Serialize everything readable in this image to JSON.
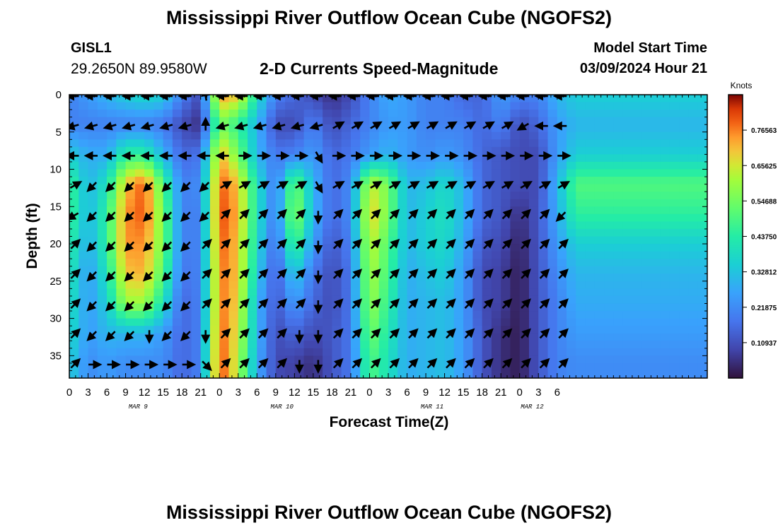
{
  "header": {
    "title": "Mississippi River Outflow Ocean Cube (NGOFS2)",
    "station_name": "GISL1",
    "station_coords": "29.2650N  89.9580W",
    "plot_title": "2-D Currents Speed-Magnitude",
    "model_start_label": "Model Start Time",
    "model_start_value": "03/09/2024 Hour 21"
  },
  "footer": {
    "title": "Mississippi River Outflow Ocean Cube (NGOFS2)"
  },
  "chart_data": {
    "type": "heatmap",
    "title": "2-D Currents Speed-Magnitude",
    "xlabel": "Forecast Time(Z)",
    "ylabel": "Depth (ft)",
    "x_unit": "hours since model start (03/09/2024 Hour 21)",
    "xlim": [
      -21,
      81
    ],
    "ylim": [
      38,
      0
    ],
    "y_inverted": true,
    "x_tick_labels": [
      "0",
      "3",
      "6",
      "9",
      "12",
      "15",
      "18",
      "21",
      "0",
      "3",
      "6",
      "9",
      "12",
      "15",
      "18",
      "21",
      "0",
      "3",
      "6",
      "9",
      "12",
      "15",
      "18",
      "21",
      "0",
      "3",
      "6"
    ],
    "x_tick_hours": [
      -21,
      -18,
      -15,
      -12,
      -9,
      -6,
      -3,
      0,
      3,
      6,
      9,
      12,
      15,
      18,
      21,
      24,
      27,
      30,
      33,
      36,
      39,
      42,
      45,
      48,
      51,
      54,
      57
    ],
    "date_labels": [
      {
        "label": "MAR 9",
        "hour": -10
      },
      {
        "label": "MAR 10",
        "hour": 13
      },
      {
        "label": "MAR 11",
        "hour": 37
      },
      {
        "label": "MAR 12",
        "hour": 53
      }
    ],
    "y_ticks": [
      0,
      5,
      10,
      15,
      20,
      25,
      30,
      35
    ],
    "colorbar": {
      "title": "Knots",
      "min": 0,
      "max": 0.875,
      "tick_labels": [
        "0.76563",
        "0.65625",
        "0.54688",
        "0.43750",
        "0.32812",
        "0.21875",
        "0.10937"
      ],
      "tick_values": [
        0.76563,
        0.65625,
        0.54688,
        0.4375,
        0.32812,
        0.21875,
        0.10937
      ]
    },
    "speed_grid": {
      "depths_ft": [
        0,
        4,
        8,
        12,
        16,
        20,
        24,
        28,
        32,
        36
      ],
      "times_hr": [
        -21,
        -18,
        -15,
        -12,
        -9,
        -6,
        -3,
        0,
        3,
        6,
        9,
        12,
        15,
        18,
        21,
        24,
        27,
        30,
        33,
        36,
        39,
        42,
        45,
        48,
        51,
        54,
        57,
        60
      ],
      "values": [
        [
          0.2,
          0.25,
          0.3,
          0.35,
          0.38,
          0.35,
          0.2,
          0.1,
          0.75,
          0.7,
          0.4,
          0.2,
          0.15,
          0.1,
          0.05,
          0.1,
          0.2,
          0.28,
          0.25,
          0.2,
          0.2,
          0.15,
          0.15,
          0.25,
          0.2,
          0.2,
          0.3,
          0.35
        ],
        [
          0.2,
          0.2,
          0.2,
          0.2,
          0.2,
          0.18,
          0.1,
          0.05,
          0.55,
          0.45,
          0.3,
          0.1,
          0.1,
          0.2,
          0.1,
          0.15,
          0.2,
          0.25,
          0.25,
          0.2,
          0.2,
          0.2,
          0.15,
          0.2,
          0.1,
          0.15,
          0.25,
          0.3
        ],
        [
          0.35,
          0.28,
          0.28,
          0.45,
          0.45,
          0.3,
          0.15,
          0.18,
          0.72,
          0.55,
          0.3,
          0.18,
          0.2,
          0.25,
          0.15,
          0.18,
          0.25,
          0.3,
          0.25,
          0.22,
          0.25,
          0.22,
          0.15,
          0.12,
          0.1,
          0.1,
          0.25,
          0.35
        ],
        [
          0.48,
          0.3,
          0.4,
          0.7,
          0.8,
          0.5,
          0.2,
          0.22,
          0.8,
          0.7,
          0.4,
          0.18,
          0.55,
          0.3,
          0.15,
          0.22,
          0.65,
          0.55,
          0.3,
          0.32,
          0.38,
          0.3,
          0.15,
          0.12,
          0.1,
          0.1,
          0.3,
          0.5
        ],
        [
          0.48,
          0.3,
          0.45,
          0.75,
          0.8,
          0.55,
          0.2,
          0.2,
          0.82,
          0.72,
          0.4,
          0.18,
          0.6,
          0.3,
          0.15,
          0.22,
          0.7,
          0.55,
          0.3,
          0.35,
          0.4,
          0.3,
          0.15,
          0.12,
          0.05,
          0.12,
          0.28,
          0.45
        ],
        [
          0.45,
          0.28,
          0.45,
          0.75,
          0.75,
          0.55,
          0.2,
          0.2,
          0.8,
          0.7,
          0.38,
          0.15,
          0.5,
          0.25,
          0.12,
          0.2,
          0.65,
          0.5,
          0.3,
          0.35,
          0.38,
          0.28,
          0.12,
          0.1,
          0.03,
          0.12,
          0.25,
          0.35
        ],
        [
          0.42,
          0.25,
          0.4,
          0.7,
          0.72,
          0.5,
          0.18,
          0.2,
          0.78,
          0.7,
          0.35,
          0.12,
          0.35,
          0.18,
          0.1,
          0.18,
          0.62,
          0.48,
          0.28,
          0.32,
          0.35,
          0.25,
          0.1,
          0.08,
          0.02,
          0.12,
          0.22,
          0.3
        ],
        [
          0.4,
          0.25,
          0.35,
          0.6,
          0.6,
          0.4,
          0.15,
          0.2,
          0.78,
          0.68,
          0.3,
          0.12,
          0.25,
          0.15,
          0.1,
          0.18,
          0.6,
          0.45,
          0.28,
          0.3,
          0.32,
          0.25,
          0.1,
          0.08,
          0.02,
          0.12,
          0.2,
          0.28
        ],
        [
          0.38,
          0.25,
          0.3,
          0.3,
          0.3,
          0.25,
          0.15,
          0.2,
          0.8,
          0.65,
          0.3,
          0.1,
          0.15,
          0.1,
          0.12,
          0.18,
          0.55,
          0.42,
          0.28,
          0.3,
          0.32,
          0.25,
          0.12,
          0.05,
          0.02,
          0.12,
          0.2,
          0.25
        ],
        [
          0.35,
          0.22,
          0.25,
          0.22,
          0.22,
          0.22,
          0.15,
          0.2,
          0.82,
          0.62,
          0.28,
          0.1,
          0.08,
          0.05,
          0.12,
          0.18,
          0.5,
          0.4,
          0.28,
          0.3,
          0.32,
          0.25,
          0.12,
          0.05,
          0.02,
          0.12,
          0.2,
          0.22
        ]
      ]
    },
    "vector_grid": {
      "depths_ft": [
        0,
        4,
        8,
        12,
        16,
        20,
        24,
        28,
        32,
        36
      ],
      "times_hr": [
        -21,
        -18,
        -15,
        -12,
        -9,
        -6,
        -3,
        0,
        3,
        6,
        9,
        12,
        15,
        18,
        21,
        24,
        27,
        30,
        33,
        36,
        39,
        42,
        45,
        48,
        51,
        54,
        57
      ],
      "angles_deg": [
        [
          180,
          180,
          180,
          180,
          180,
          180,
          180,
          100,
          180,
          180,
          180,
          180,
          180,
          180,
          180,
          180,
          180,
          180,
          180,
          180,
          180,
          180,
          180,
          180,
          180,
          180,
          180
        ],
        [
          195,
          195,
          195,
          195,
          195,
          195,
          195,
          90,
          195,
          195,
          195,
          195,
          195,
          195,
          30,
          30,
          30,
          30,
          30,
          30,
          30,
          30,
          30,
          30,
          210,
          180,
          180
        ],
        [
          180,
          180,
          180,
          180,
          180,
          180,
          180,
          180,
          180,
          0,
          0,
          0,
          0,
          -60,
          0,
          0,
          0,
          0,
          0,
          0,
          0,
          0,
          0,
          0,
          0,
          0,
          0
        ],
        [
          30,
          225,
          225,
          225,
          225,
          225,
          225,
          225,
          30,
          30,
          30,
          30,
          30,
          -60,
          30,
          30,
          30,
          30,
          30,
          30,
          30,
          30,
          30,
          30,
          30,
          30,
          30
        ],
        [
          210,
          225,
          225,
          225,
          225,
          225,
          225,
          225,
          45,
          45,
          45,
          45,
          45,
          -90,
          45,
          45,
          45,
          45,
          45,
          45,
          45,
          45,
          45,
          45,
          45,
          45,
          225
        ],
        [
          45,
          225,
          225,
          225,
          225,
          225,
          225,
          45,
          45,
          45,
          45,
          45,
          45,
          -90,
          45,
          45,
          45,
          45,
          45,
          45,
          45,
          45,
          45,
          45,
          45,
          45,
          45
        ],
        [
          45,
          225,
          225,
          225,
          225,
          225,
          225,
          45,
          45,
          45,
          45,
          45,
          45,
          -90,
          45,
          45,
          45,
          45,
          45,
          45,
          45,
          45,
          45,
          45,
          45,
          45,
          45
        ],
        [
          45,
          225,
          225,
          225,
          225,
          225,
          225,
          45,
          45,
          45,
          45,
          45,
          45,
          -90,
          45,
          45,
          45,
          45,
          45,
          45,
          45,
          45,
          45,
          45,
          45,
          45,
          45
        ],
        [
          45,
          225,
          225,
          225,
          270,
          225,
          225,
          270,
          45,
          45,
          45,
          45,
          -90,
          -90,
          45,
          45,
          45,
          45,
          45,
          45,
          45,
          45,
          45,
          45,
          45,
          45,
          45
        ],
        [
          45,
          0,
          0,
          0,
          0,
          0,
          0,
          315,
          45,
          45,
          45,
          45,
          -90,
          -90,
          45,
          45,
          45,
          45,
          45,
          45,
          45,
          45,
          45,
          45,
          45,
          45,
          45
        ]
      ]
    }
  }
}
